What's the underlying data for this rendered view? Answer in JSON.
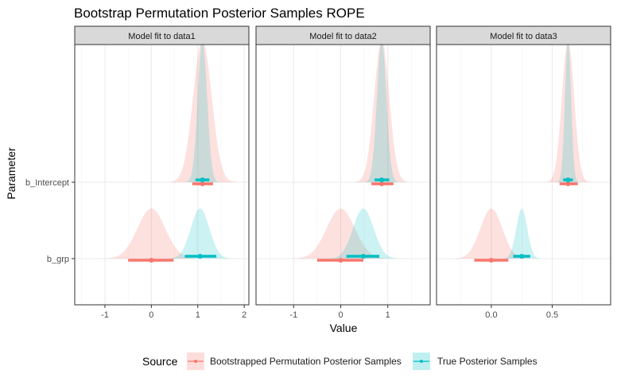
{
  "chart_data": {
    "type": "ridgeline",
    "title": "Bootstrap Permutation Posterior Samples ROPE",
    "xlabel": "Value",
    "ylabel": "Parameter",
    "parameters": [
      "b_Intercept",
      "b_grp"
    ],
    "legend": {
      "title": "Source",
      "position": "bottom",
      "items": [
        {
          "name": "Bootstrapped Permutation Posterior Samples",
          "color": "#f8766d"
        },
        {
          "name": "True Posterior Samples",
          "color": "#00bfc4"
        }
      ]
    },
    "grid": true,
    "facets": [
      {
        "label": "Model fit to data1",
        "xlim": [
          -1.65,
          2.1
        ],
        "xticks": [
          -1,
          0,
          1,
          2
        ],
        "xtick_labels": [
          "-1",
          "0",
          "1",
          "2"
        ],
        "series": [
          {
            "source": "Bootstrapped Permutation Posterior Samples",
            "parameter": "b_Intercept",
            "center": 1.1,
            "sd": 0.2,
            "ci": [
              0.88,
              1.33
            ]
          },
          {
            "source": "True Posterior Samples",
            "parameter": "b_Intercept",
            "center": 1.1,
            "sd": 0.1,
            "ci": [
              0.95,
              1.25
            ]
          },
          {
            "source": "Bootstrapped Permutation Posterior Samples",
            "parameter": "b_grp",
            "center": 0.0,
            "sd": 0.3,
            "ci": [
              -0.5,
              0.48
            ]
          },
          {
            "source": "True Posterior Samples",
            "parameter": "b_grp",
            "center": 1.05,
            "sd": 0.2,
            "ci": [
              0.72,
              1.4
            ]
          }
        ]
      },
      {
        "label": "Model fit to data2",
        "xlim": [
          -1.8,
          1.9
        ],
        "xticks": [
          -1,
          0,
          1
        ],
        "xtick_labels": [
          "-1",
          "0",
          "1"
        ],
        "series": [
          {
            "source": "Bootstrapped Permutation Posterior Samples",
            "parameter": "b_Intercept",
            "center": 0.87,
            "sd": 0.16,
            "ci": [
              0.65,
              1.12
            ]
          },
          {
            "source": "True Posterior Samples",
            "parameter": "b_Intercept",
            "center": 0.87,
            "sd": 0.1,
            "ci": [
              0.72,
              1.03
            ]
          },
          {
            "source": "Bootstrapped Permutation Posterior Samples",
            "parameter": "b_grp",
            "center": 0.0,
            "sd": 0.3,
            "ci": [
              -0.5,
              0.48
            ]
          },
          {
            "source": "True Posterior Samples",
            "parameter": "b_grp",
            "center": 0.48,
            "sd": 0.22,
            "ci": [
              0.12,
              0.82
            ]
          }
        ]
      },
      {
        "label": "Model fit to data3",
        "xlim": [
          -0.45,
          0.98
        ],
        "xticks": [
          0,
          0.5
        ],
        "xtick_labels": [
          "0.0",
          "0.5"
        ],
        "series": [
          {
            "source": "Bootstrapped Permutation Posterior Samples",
            "parameter": "b_Intercept",
            "center": 0.63,
            "sd": 0.05,
            "ci": [
              0.56,
              0.71
            ]
          },
          {
            "source": "True Posterior Samples",
            "parameter": "b_Intercept",
            "center": 0.63,
            "sd": 0.025,
            "ci": [
              0.59,
              0.67
            ]
          },
          {
            "source": "Bootstrapped Permutation Posterior Samples",
            "parameter": "b_grp",
            "center": 0.0,
            "sd": 0.09,
            "ci": [
              -0.14,
              0.14
            ]
          },
          {
            "source": "True Posterior Samples",
            "parameter": "b_grp",
            "center": 0.25,
            "sd": 0.045,
            "ci": [
              0.18,
              0.32
            ]
          }
        ]
      }
    ]
  }
}
